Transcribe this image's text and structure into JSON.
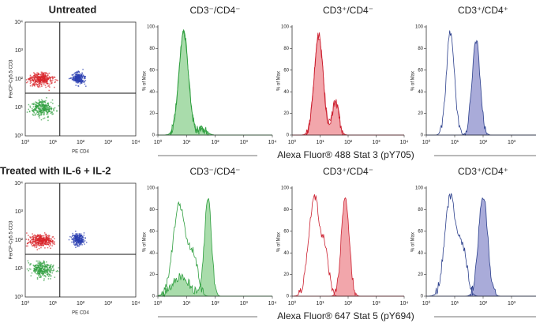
{
  "rows": [
    {
      "title": "Untreated",
      "dot_plot": {
        "y_label": "PerCP-Cy5.5 CD3",
        "x_label": "PE CD4",
        "x_ticks": [
          "10⁰",
          "10¹",
          "10²",
          "10³",
          "10⁴"
        ],
        "y_ticks": [
          "10⁰",
          "10¹",
          "10²",
          "10³",
          "10⁴"
        ]
      },
      "histograms": [
        {
          "title": "CD3⁻/CD4⁻",
          "y_label": "% of Max",
          "y_ticks": [
            "0",
            "20",
            "40",
            "60",
            "80",
            "100"
          ],
          "x_ticks": [
            "10⁰",
            "10¹",
            "10²",
            "10³",
            "10⁴"
          ]
        },
        {
          "title": "CD3⁺/CD4⁻",
          "y_label": "% of Max",
          "y_ticks": [
            "0",
            "20",
            "40",
            "60",
            "80",
            "100"
          ],
          "x_ticks": [
            "10⁰",
            "10¹",
            "10²",
            "10³",
            "10⁴"
          ]
        },
        {
          "title": "CD3⁺/CD4⁺",
          "y_label": "% of Max",
          "y_ticks": [
            "0",
            "20",
            "40",
            "60",
            "80",
            "100"
          ],
          "x_ticks": [
            "10⁰",
            "10¹",
            "10²",
            "10³",
            "10⁴"
          ]
        }
      ],
      "caption": "Alexa Fluor® 488 Stat 3 (pY705)"
    },
    {
      "title": "Treated with IL-6 + IL-2",
      "dot_plot": {
        "y_label": "PerCP-Cy5.5 CD3",
        "x_label": "PE CD4",
        "x_ticks": [
          "10⁰",
          "10¹",
          "10²",
          "10³",
          "10⁴"
        ],
        "y_ticks": [
          "10⁰",
          "10¹",
          "10²",
          "10³",
          "10⁴"
        ]
      },
      "histograms": [
        {
          "title": "CD3⁻/CD4⁻",
          "y_label": "% of Max",
          "y_ticks": [
            "0",
            "20",
            "40",
            "60",
            "80",
            "100"
          ],
          "x_ticks": [
            "10⁰",
            "10¹",
            "10²",
            "10³",
            "10⁴"
          ]
        },
        {
          "title": "CD3⁺/CD4⁻",
          "y_label": "% of Max",
          "y_ticks": [
            "0",
            "20",
            "40",
            "60",
            "80",
            "100"
          ],
          "x_ticks": [
            "10⁰",
            "10¹",
            "10²",
            "10³",
            "10⁴"
          ]
        },
        {
          "title": "CD3⁺/CD4⁺",
          "y_label": "% of Max",
          "y_ticks": [
            "0",
            "20",
            "40",
            "60",
            "80",
            "100"
          ],
          "x_ticks": [
            "10⁰",
            "10¹",
            "10²",
            "10³",
            "10⁴"
          ]
        }
      ],
      "caption": "Alexa Fluor® 647 Stat 5 (pY694)"
    }
  ]
}
